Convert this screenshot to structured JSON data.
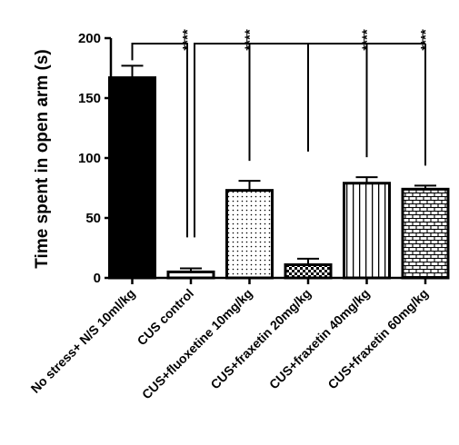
{
  "chart_data": {
    "type": "bar",
    "ylabel": "Time spent in open arm (s)",
    "ylim": [
      0,
      200
    ],
    "yticks": [
      0,
      50,
      100,
      150,
      200
    ],
    "categories": [
      "No stress+ N/S 10ml/kg",
      "CUS control",
      "CUS+fluoxetine 10mg/kg",
      "CUS+fraxetin 20mg/kg",
      "CUS+fraxetin 40mg/kg",
      "CUS+fraxetin 60mg/kg"
    ],
    "values": [
      167,
      5,
      73,
      11,
      79,
      74
    ],
    "errors": [
      10,
      3,
      8,
      5,
      5,
      3
    ],
    "fills": [
      "solid",
      "white",
      "dots",
      "checker",
      "vertical-lines",
      "brick"
    ],
    "significance": [
      {
        "from": 0,
        "to": 1,
        "label": "****"
      },
      {
        "from": 1,
        "to": 2,
        "label": "****"
      },
      {
        "from": 1,
        "to": 4,
        "label": "****"
      },
      {
        "from": 1,
        "to": 5,
        "label": "****"
      }
    ],
    "grid": false,
    "legend": "none"
  }
}
